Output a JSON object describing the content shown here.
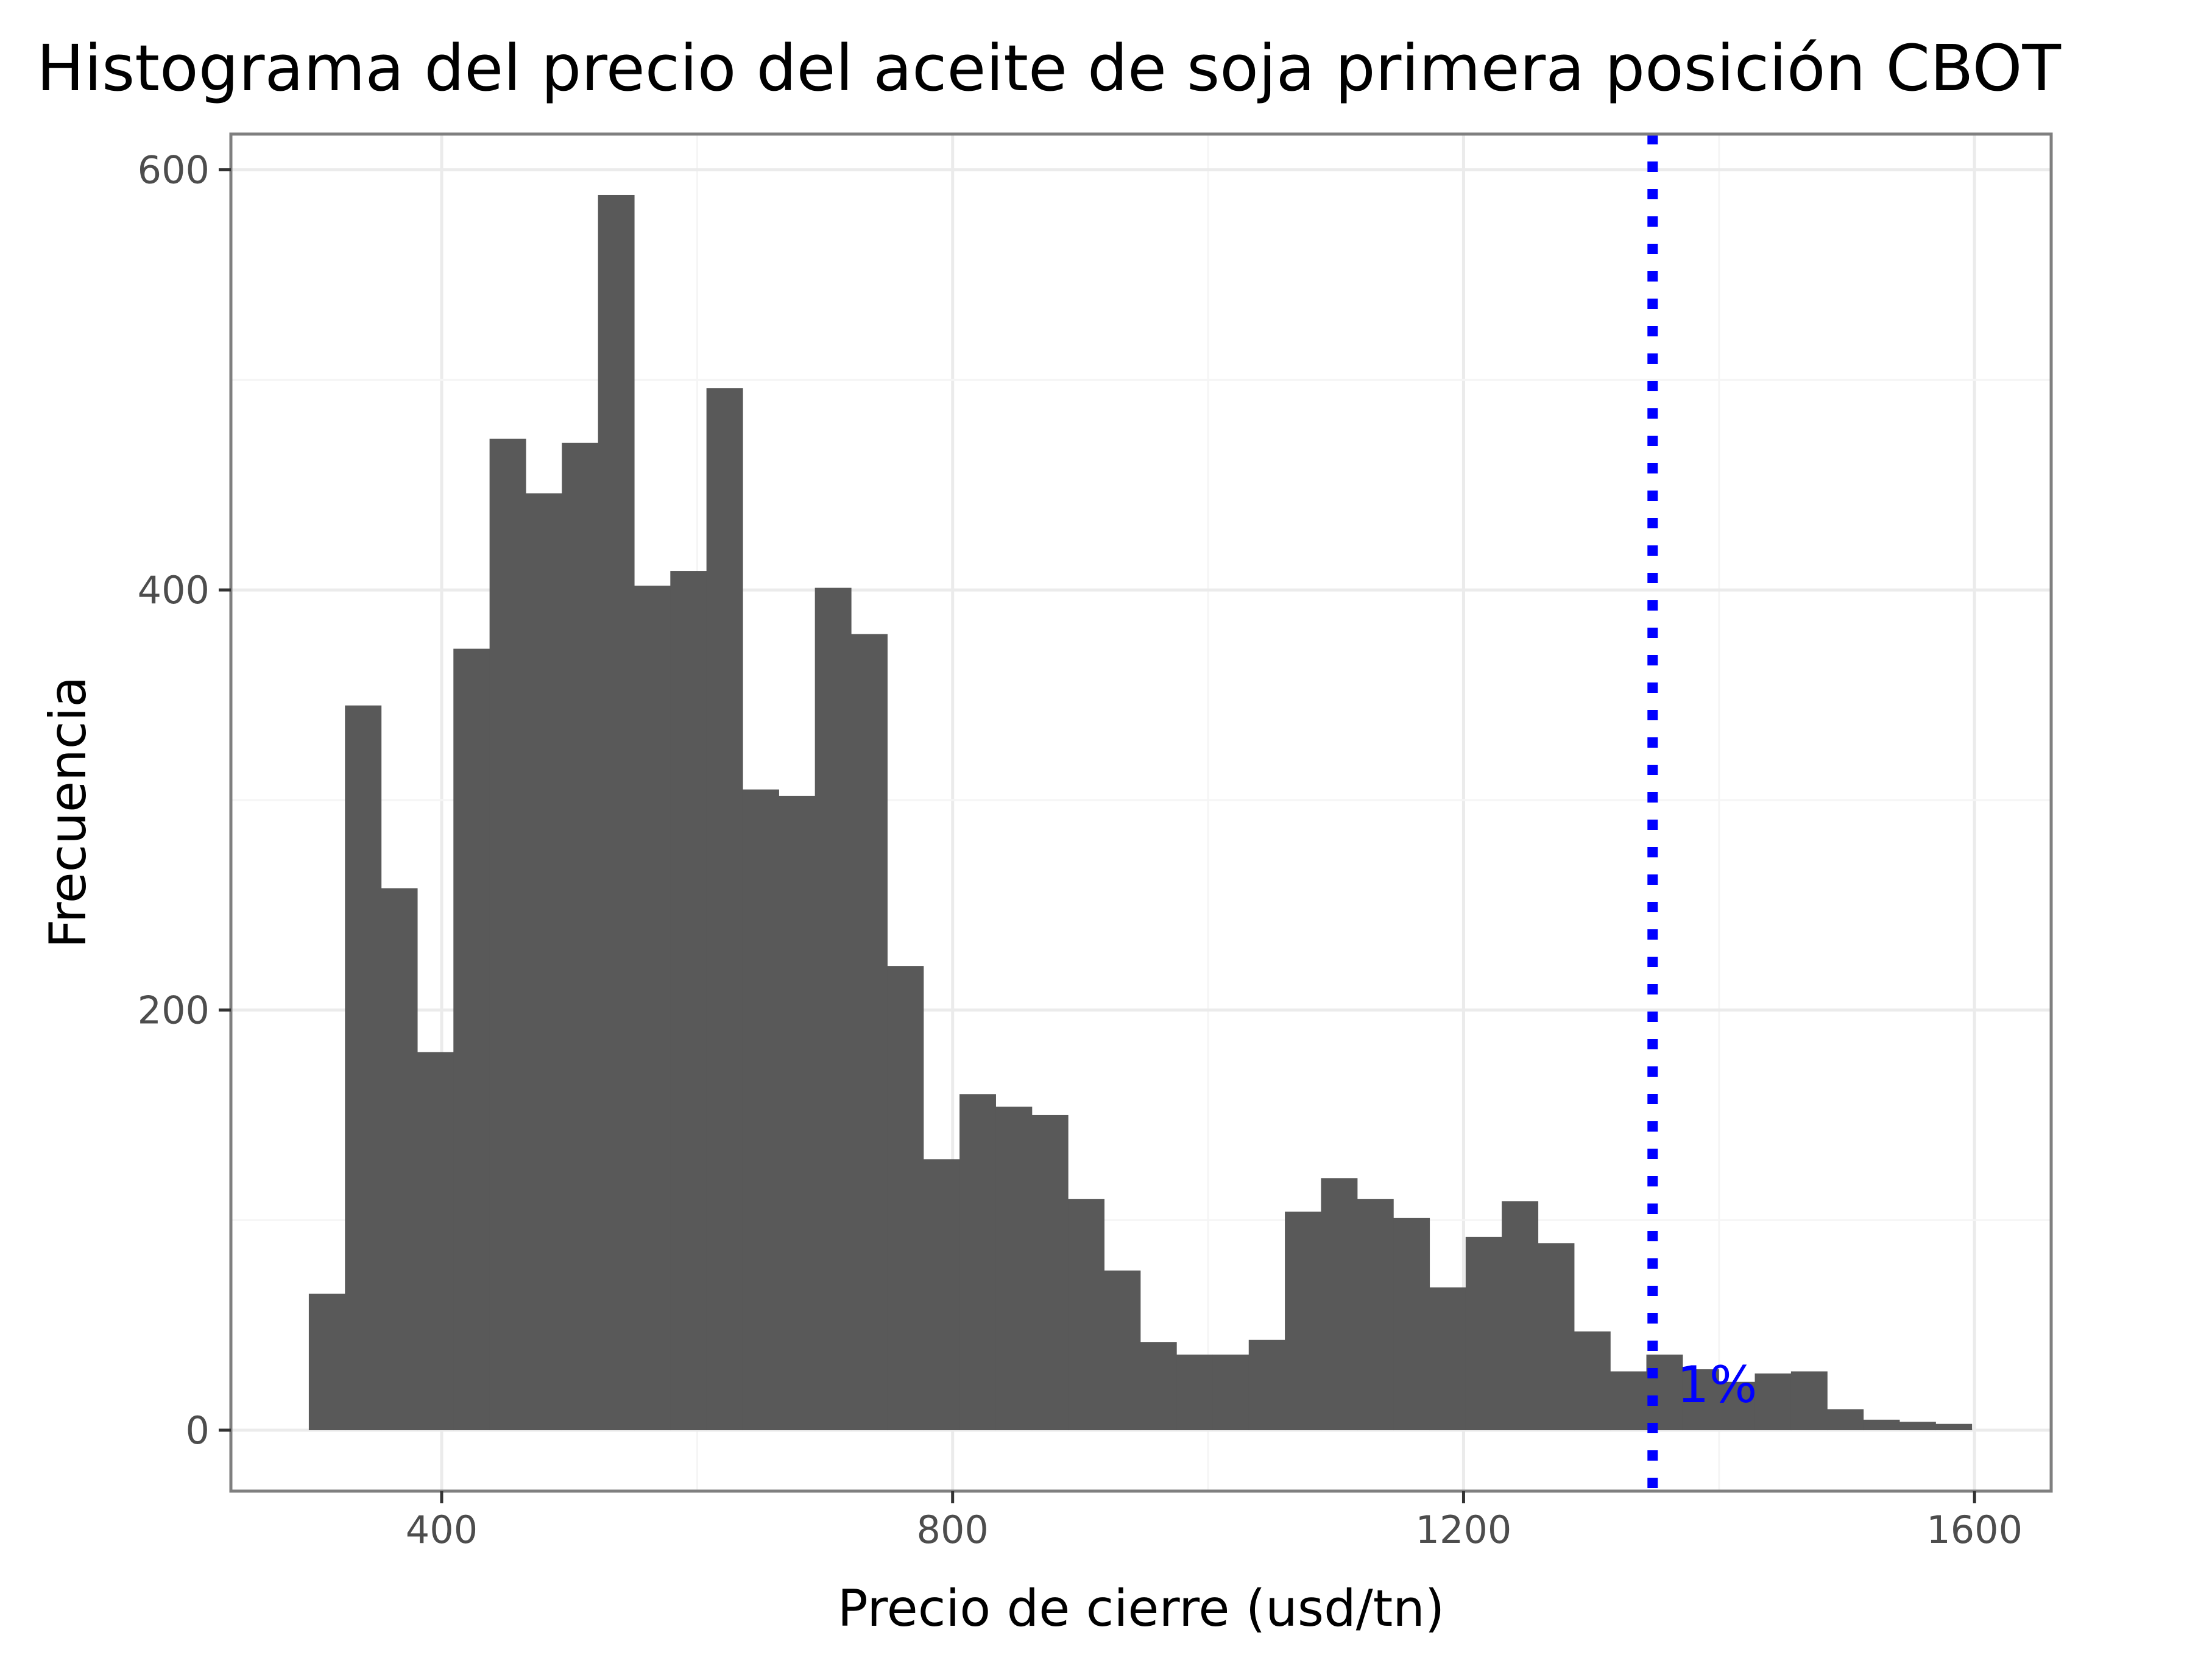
{
  "chart_data": {
    "type": "bar",
    "subtype": "histogram",
    "title": "Histograma del precio del aceite de soja primera posición CBOT",
    "xlabel": "Precio de cierre (usd/tn)",
    "ylabel": "Frecuencia",
    "x_ticks": [
      400,
      800,
      1200,
      1600
    ],
    "y_ticks": [
      0,
      200,
      400,
      600
    ],
    "xlim": [
      235,
      1660
    ],
    "ylim": [
      -29,
      617
    ],
    "bin_width": 28.3,
    "bin_start": 296,
    "values": [
      65,
      345,
      258,
      180,
      372,
      472,
      446,
      470,
      588,
      402,
      409,
      496,
      305,
      302,
      401,
      379,
      221,
      129,
      160,
      154,
      150,
      110,
      76,
      42,
      36,
      36,
      43,
      104,
      120,
      110,
      101,
      68,
      92,
      109,
      89,
      47,
      28,
      36,
      29,
      23,
      27,
      28,
      10,
      5,
      4,
      3
    ],
    "bar_color": "#595959",
    "grid": true,
    "reference_line": {
      "x": 1348,
      "style": "dotted",
      "color": "#0000ff",
      "label": "1%"
    }
  }
}
